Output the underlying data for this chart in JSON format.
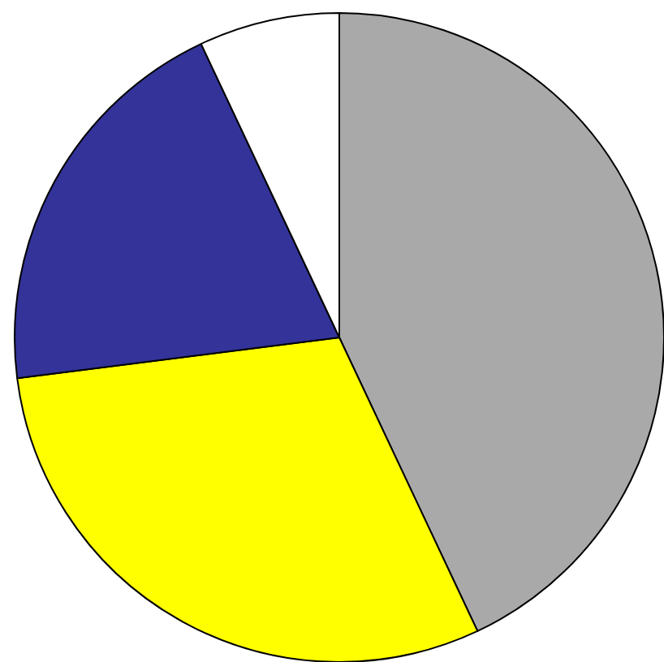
{
  "chart_data": {
    "type": "pie",
    "categories": [
      null,
      null,
      null,
      null
    ],
    "values": [
      43,
      30,
      20,
      7
    ],
    "colors": [
      "#a9a9a9",
      "#ffff00",
      "#333399",
      "#ffffff"
    ]
  }
}
